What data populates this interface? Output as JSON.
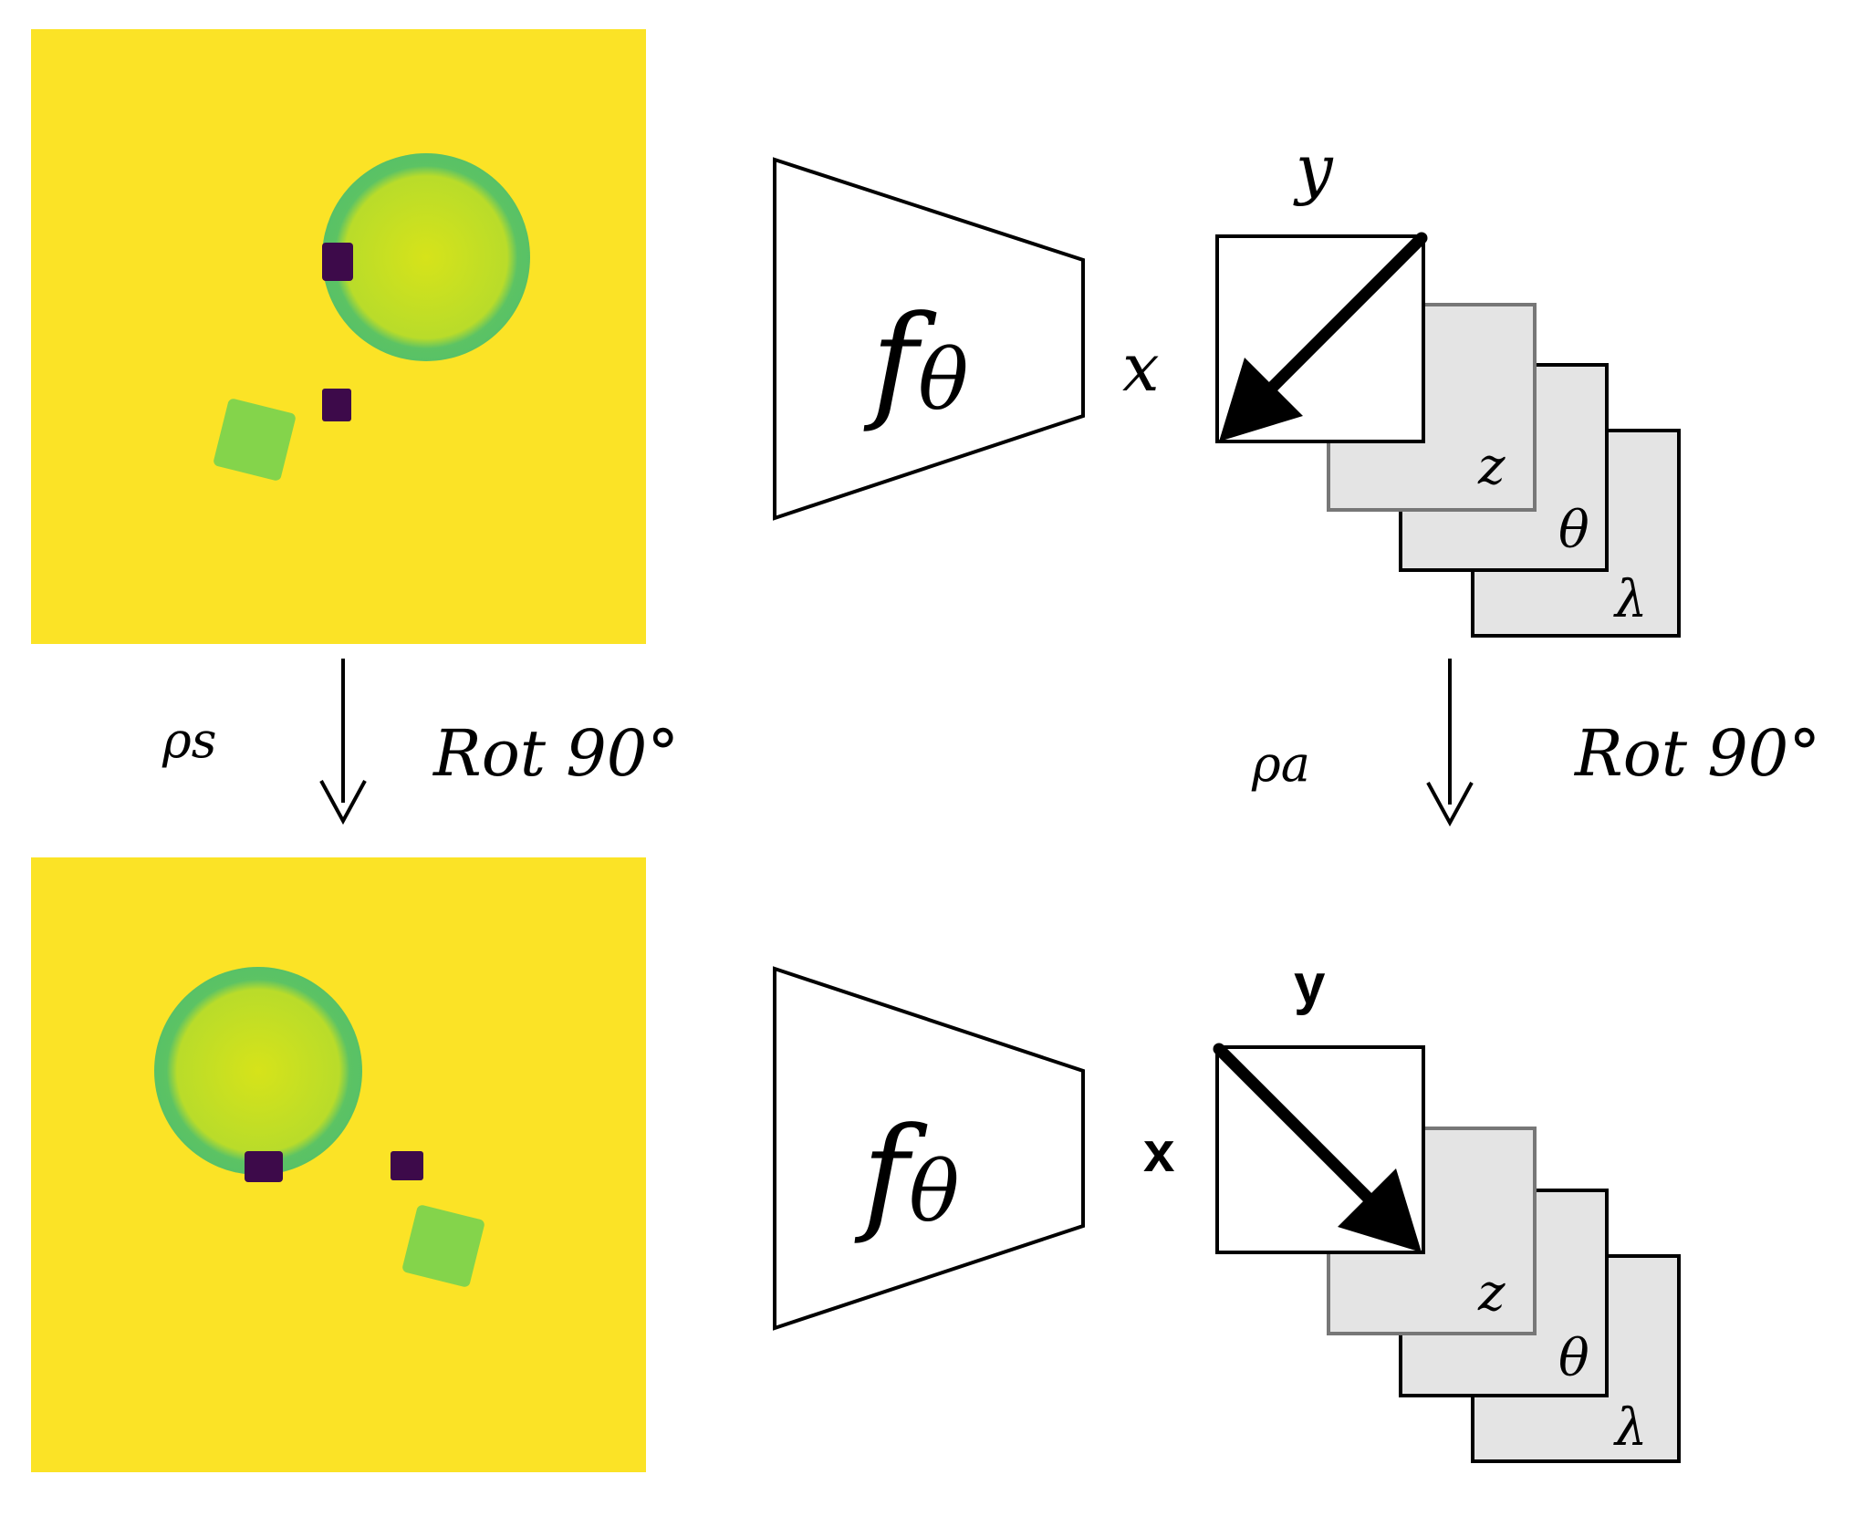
{
  "colors": {
    "background": "#fbe326",
    "disk_outer": "#5dc463",
    "disk_inner": "#d2e21b",
    "square": "#84d44b",
    "marker": "#3d0a4a",
    "frame_fill": "#e4e4e4",
    "frame_stroke_gray": "#777777"
  },
  "top": {
    "network_label_f": "f",
    "network_label_sub": "θ",
    "x_label": "x",
    "y_label": "y",
    "channel_labels": [
      "z",
      "θ",
      "λ"
    ]
  },
  "arrows": {
    "left_rep": "ρs",
    "left_op": "Rot 90°",
    "right_rep": "ρa",
    "right_op": "Rot 90°"
  },
  "bottom": {
    "network_label_f": "f",
    "network_label_sub": "θ",
    "x_label": "x",
    "y_label": "y",
    "channel_labels": [
      "z",
      "θ",
      "λ"
    ]
  }
}
